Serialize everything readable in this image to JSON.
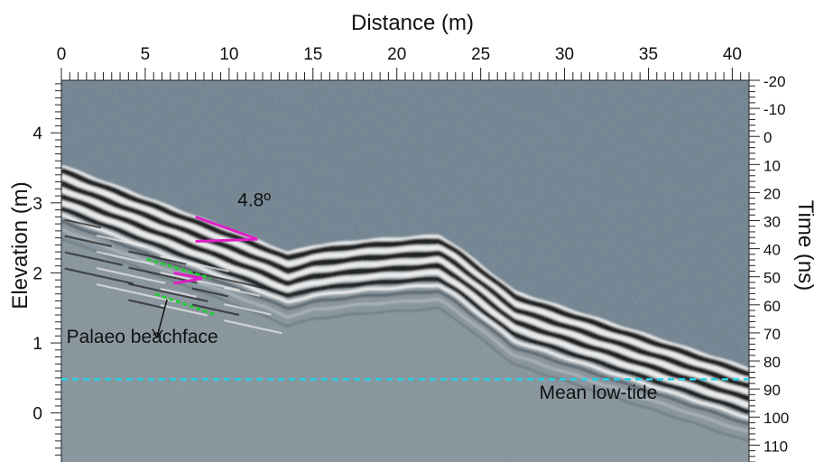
{
  "chart_data": {
    "type": "heatmap",
    "title": "",
    "xlabel": "Distance (m)",
    "ylabel_left": "Elevation (m)",
    "ylabel_right": "Time (ns)",
    "x_ticks": [
      0,
      5,
      10,
      15,
      20,
      25,
      30,
      35,
      40
    ],
    "xlim": [
      0,
      41
    ],
    "left_ticks": [
      4,
      3,
      2,
      1,
      0
    ],
    "left_range": [
      -0.7,
      4.75
    ],
    "right_ticks": [
      -20,
      -10,
      0,
      10,
      20,
      30,
      40,
      50,
      60,
      70,
      80,
      90,
      100,
      110
    ],
    "right_range": [
      -20,
      116
    ],
    "ground_surface": [
      {
        "x": 0,
        "elev": 3.55
      },
      {
        "x": 6,
        "elev": 3.0
      },
      {
        "x": 12,
        "elev": 2.45
      },
      {
        "x": 13.5,
        "elev": 2.3
      },
      {
        "x": 15,
        "elev": 2.4
      },
      {
        "x": 18,
        "elev": 2.48
      },
      {
        "x": 22.5,
        "elev": 2.55
      },
      {
        "x": 23.5,
        "elev": 2.4
      },
      {
        "x": 27,
        "elev": 1.75
      },
      {
        "x": 34,
        "elev": 1.2
      },
      {
        "x": 41,
        "elev": 0.65
      }
    ],
    "series": [
      {
        "name": "Mean low-tide",
        "style": "dashed",
        "color": "#22d3e6",
        "elev": 0.48
      }
    ],
    "annotations": {
      "dip_angle": {
        "label": "4.8º",
        "x": 10.5,
        "elev": 2.95
      },
      "palaeo": {
        "label": "Palaeo beachface",
        "x": 0.3,
        "elev": 1.0
      },
      "tide_label": {
        "label": "Mean low-tide",
        "x": 28.5,
        "elev": 0.2
      }
    },
    "palaeo_lines": [
      {
        "x1": 5.1,
        "e1": 2.2,
        "x2": 8.9,
        "e2": 1.92
      },
      {
        "x1": 5.6,
        "e1": 1.7,
        "x2": 9.2,
        "e2": 1.4
      }
    ],
    "dip_markers": [
      {
        "x1": 8.0,
        "e1": 2.8,
        "x2": 11.7,
        "e2": 2.48
      },
      {
        "x1": 8.0,
        "e1": 2.45,
        "x2": 11.7,
        "e2": 2.48
      },
      {
        "x1": 6.7,
        "e1": 2.0,
        "x2": 8.4,
        "e2": 1.92
      },
      {
        "x1": 6.7,
        "e1": 1.85,
        "x2": 8.4,
        "e2": 1.92
      }
    ],
    "colors": {
      "background": "#6f8290",
      "reflection_dark": "#0a0a0a",
      "reflection_light": "#f4f4f4",
      "palaeo": "#22cc33",
      "dip": "#e01ec8",
      "tide": "#22d3e6"
    }
  }
}
